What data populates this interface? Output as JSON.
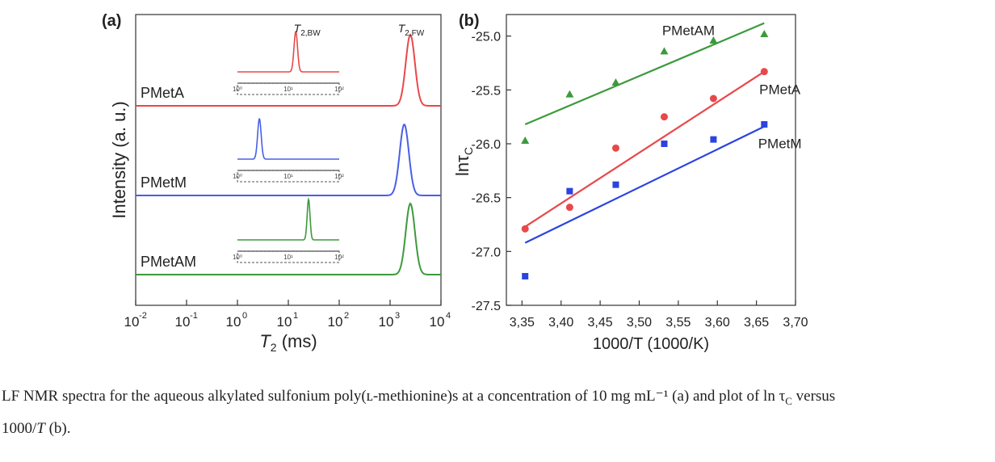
{
  "chart_data": [
    {
      "type": "line",
      "panel_label": "(a)",
      "xlabel": "T",
      "xlabel_sub": "2",
      "xlabel_unit": " (ms)",
      "ylabel": "Intensity (a. u.)",
      "x_scale": "log",
      "xlim": [
        0.01,
        10000
      ],
      "x_ticks": [
        {
          "v": 0.01,
          "base": "10",
          "exp": "-2"
        },
        {
          "v": 0.1,
          "base": "10",
          "exp": "-1"
        },
        {
          "v": 1,
          "base": "10",
          "exp": "0"
        },
        {
          "v": 10,
          "base": "10",
          "exp": "1"
        },
        {
          "v": 100,
          "base": "10",
          "exp": "2"
        },
        {
          "v": 1000,
          "base": "10",
          "exp": "3"
        },
        {
          "v": 10000,
          "base": "10",
          "exp": "4"
        }
      ],
      "peak_labels": [
        {
          "main": "T",
          "sub": "2,BW",
          "x": 13
        },
        {
          "main": "T",
          "sub": "2,FW",
          "x": 2400
        }
      ],
      "series": [
        {
          "name": "PMetA",
          "color": "#e8484a",
          "peak_center": 2500,
          "peak_width_log": 0.09,
          "inset_peak": 14,
          "inset_width_log": 0.035
        },
        {
          "name": "PMetM",
          "color": "#4a5fe6",
          "peak_center": 1900,
          "peak_width_log": 0.09,
          "inset_peak": 2.7,
          "inset_width_log": 0.035
        },
        {
          "name": "PMetAM",
          "color": "#3c9a3c",
          "peak_center": 2500,
          "peak_width_log": 0.09,
          "inset_peak": 25,
          "inset_width_log": 0.028
        }
      ],
      "inset_ticks": [
        "10⁰",
        "10¹",
        "10²"
      ]
    },
    {
      "type": "scatter",
      "panel_label": "(b)",
      "xlabel": "1000/T (1000/K)",
      "ylabel": "lnτ",
      "ylabel_sub": "C",
      "xlim": [
        3.33,
        3.7
      ],
      "ylim": [
        -27.5,
        -24.8
      ],
      "x_tick_values": [
        3.35,
        3.4,
        3.45,
        3.5,
        3.55,
        3.6,
        3.65,
        3.7
      ],
      "x_ticks": [
        "3,35",
        "3,40",
        "3,45",
        "3,50",
        "3,55",
        "3,60",
        "3,65",
        "3,70"
      ],
      "y_tick_values": [
        -25.0,
        -25.5,
        -26.0,
        -26.5,
        -27.0,
        -27.5
      ],
      "y_ticks": [
        "-25.0",
        "-25.5",
        "-26.0",
        "-26.5",
        "-27.0",
        "-27.5"
      ],
      "series": [
        {
          "name": "PMetAM",
          "color": "#3c9a3c",
          "marker": "triangle",
          "x": [
            3.354,
            3.411,
            3.47,
            3.532,
            3.595,
            3.66
          ],
          "y": [
            -25.97,
            -25.54,
            -25.43,
            -25.14,
            -25.04,
            -24.98
          ],
          "fit": [
            [
              3.354,
              -25.82
            ],
            [
              3.66,
              -24.88
            ]
          ],
          "label": "PMetAM",
          "label_pos": [
            3.563,
            -24.99
          ]
        },
        {
          "name": "PMetA",
          "color": "#e8484a",
          "marker": "circle",
          "x": [
            3.354,
            3.411,
            3.47,
            3.532,
            3.595,
            3.66
          ],
          "y": [
            -26.79,
            -26.59,
            -26.04,
            -25.75,
            -25.58,
            -25.33
          ],
          "fit": [
            [
              3.354,
              -26.77
            ],
            [
              3.66,
              -25.33
            ]
          ],
          "label": "PMetA",
          "label_pos": [
            3.68,
            -25.54
          ]
        },
        {
          "name": "PMetM",
          "color": "#2a44e0",
          "marker": "square",
          "x": [
            3.354,
            3.411,
            3.47,
            3.532,
            3.595,
            3.66
          ],
          "y": [
            -27.23,
            -26.44,
            -26.38,
            -26.0,
            -25.96,
            -25.82
          ],
          "fit": [
            [
              3.354,
              -26.92
            ],
            [
              3.66,
              -25.84
            ]
          ],
          "label": "PMetM",
          "label_pos": [
            3.68,
            -26.04
          ]
        }
      ]
    }
  ],
  "caption": {
    "line1": "LF NMR spectra for the aqueous alkylated sulfonium poly(ʟ-methionine)s at a concentration of 10 mg mL⁻¹ (a) and plot of ln τ",
    "line1_sub": "C",
    "line1_end": " versus",
    "line2_pre": "1000/",
    "line2_italic": "T",
    "line2_post": " (b)."
  }
}
